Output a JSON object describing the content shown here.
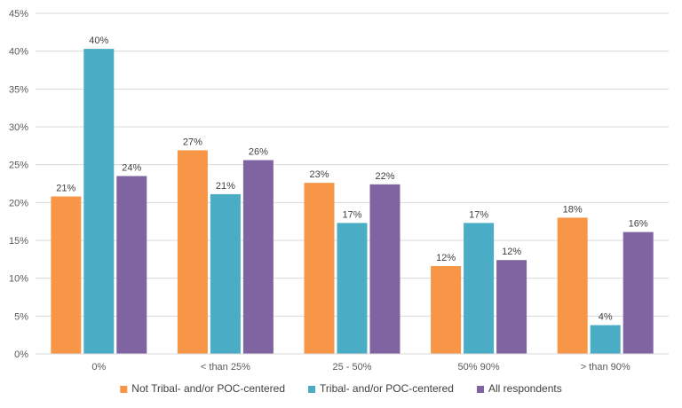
{
  "chart_data": {
    "type": "bar",
    "title": "",
    "xlabel": "",
    "ylabel": "",
    "ylim": [
      0,
      45
    ],
    "yticks": [
      "0%",
      "5%",
      "10%",
      "15%",
      "20%",
      "25%",
      "30%",
      "35%",
      "40%",
      "45%"
    ],
    "grid": true,
    "legend_position": "bottom",
    "categories": [
      "0%",
      "< than 25%",
      "25 - 50%",
      "50%  90%",
      "> than 90%"
    ],
    "series": [
      {
        "name": "Not Tribal- and/or POC-centered",
        "color": "#F79646",
        "values": [
          20.8,
          26.9,
          22.6,
          11.6,
          18.0
        ],
        "labels": [
          "21%",
          "27%",
          "23%",
          "12%",
          "18%"
        ]
      },
      {
        "name": "Tribal- and/or POC-centered",
        "color": "#4BACC6",
        "values": [
          40.3,
          21.1,
          17.3,
          17.3,
          3.8
        ],
        "labels": [
          "40%",
          "21%",
          "17%",
          "17%",
          "4%"
        ]
      },
      {
        "name": "All respondents",
        "color": "#8064A2",
        "values": [
          23.5,
          25.6,
          22.4,
          12.4,
          16.1
        ],
        "labels": [
          "24%",
          "26%",
          "22%",
          "12%",
          "16%"
        ]
      }
    ]
  }
}
